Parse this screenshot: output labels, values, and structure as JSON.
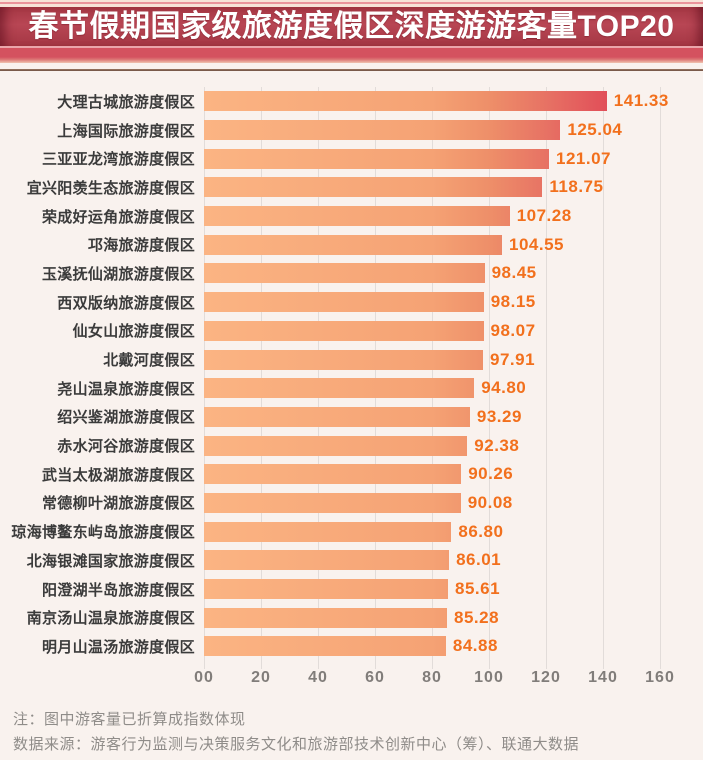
{
  "title": "春节假期国家级旅游度假区深度游游客量TOP20",
  "chart_data": {
    "type": "bar",
    "orientation": "horizontal",
    "title": "春节假期国家级旅游度假区深度游游客量TOP20",
    "categories": [
      "大理古城旅游度假区",
      "上海国际旅游度假区",
      "三亚亚龙湾旅游度假区",
      "宜兴阳羡生态旅游度假区",
      "荣成好运角旅游度假区",
      "邛海旅游度假区",
      "玉溪抚仙湖旅游度假区",
      "西双版纳旅游度假区",
      "仙女山旅游度假区",
      "北戴河度假区",
      "尧山温泉旅游度假区",
      "绍兴鉴湖旅游度假区",
      "赤水河谷旅游度假区",
      "武当太极湖旅游度假区",
      "常德柳叶湖旅游度假区",
      "琼海博鳌东屿岛旅游度假区",
      "北海银滩国家旅游度假区",
      "阳澄湖半岛旅游度假区",
      "南京汤山温泉旅游度假区",
      "明月山温汤旅游度假区"
    ],
    "values": [
      141.33,
      125.04,
      121.07,
      118.75,
      107.28,
      104.55,
      98.45,
      98.15,
      98.07,
      97.91,
      94.8,
      93.29,
      92.38,
      90.26,
      90.08,
      86.8,
      86.01,
      85.61,
      85.28,
      84.88
    ],
    "value_labels": [
      "141.33",
      "125.04",
      "121.07",
      "118.75",
      "107.28",
      "104.55",
      "98.45",
      "98.15",
      "98.07",
      "97.91",
      "94.80",
      "93.29",
      "92.38",
      "90.26",
      "90.08",
      "86.80",
      "86.01",
      "85.61",
      "85.28",
      "84.88"
    ],
    "xlim": [
      0,
      160
    ],
    "x_ticks": [
      "00",
      "20",
      "40",
      "60",
      "80",
      "100",
      "120",
      "140",
      "160"
    ],
    "grid": true,
    "legend": "none",
    "bar_gradient_start": "#fbb483",
    "bar_gradient_end": "#d93b52",
    "value_label_color": "#f2701d",
    "category_label_color": "#3b3b3b",
    "tick_label_color": "#817d7a"
  },
  "header": {
    "band_color": "#ad3b49",
    "sub_band_color": "#d4525f",
    "title_color": "#ffffff"
  },
  "notes": {
    "note": "注：图中游客量已折算成指数体现",
    "source": "数据来源：游客行为监测与决策服务文化和旅游部技术创新中心（筹）、联通大数据"
  }
}
